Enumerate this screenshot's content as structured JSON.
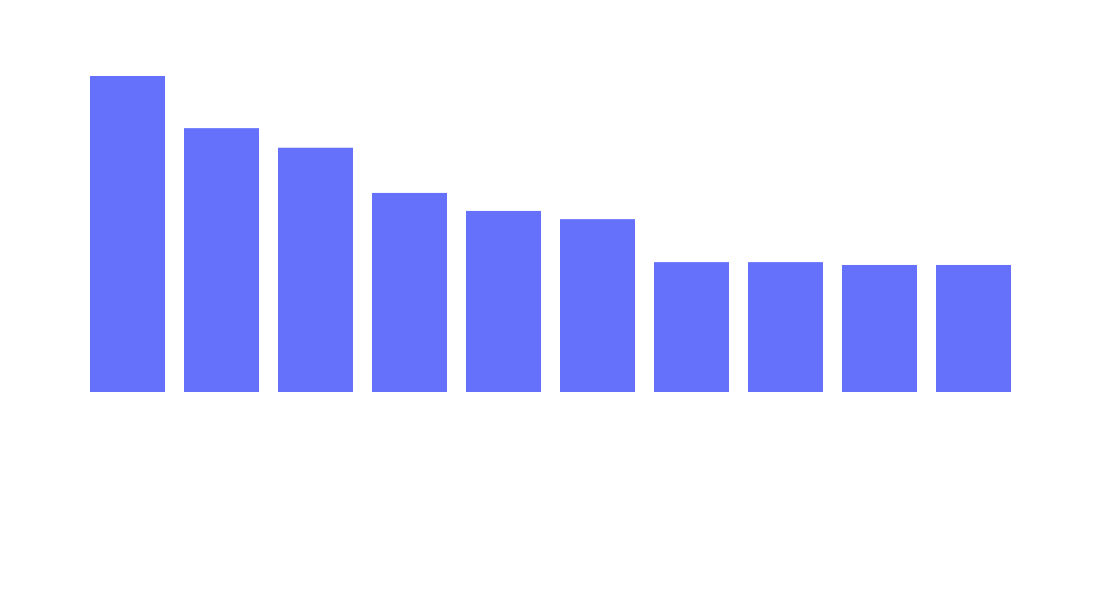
{
  "chart_data": {
    "type": "bar",
    "colors": {
      "bar": "#6571fb",
      "background": "#ffffff"
    },
    "values": [
      100,
      83.5,
      77.3,
      63,
      57.3,
      54.7,
      41.1,
      41.1,
      40.2,
      40.2
    ],
    "ylim": [
      0,
      100
    ],
    "grid": false,
    "legend": "none"
  }
}
